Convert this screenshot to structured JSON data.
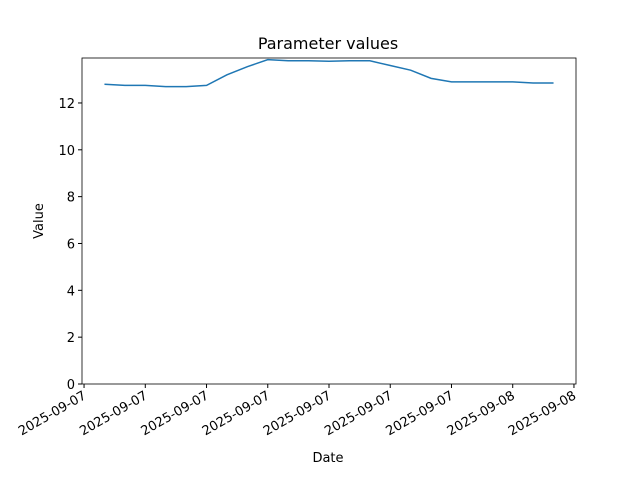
{
  "chart_data": {
    "type": "line",
    "title": "Parameter values",
    "x_label": "Date",
    "y_label": "Value",
    "x": [
      1,
      2,
      3,
      4,
      5,
      6,
      7,
      8,
      9,
      10,
      11,
      12,
      13,
      14,
      15,
      16,
      17,
      18,
      19,
      20,
      21,
      22,
      23
    ],
    "series": [
      {
        "name": "Value",
        "color": "#1f77b4",
        "values": [
          12.8,
          12.75,
          12.75,
          12.7,
          12.7,
          12.75,
          13.2,
          13.55,
          13.85,
          13.8,
          13.8,
          13.78,
          13.8,
          13.8,
          13.6,
          13.4,
          13.05,
          12.9,
          12.9,
          12.9,
          12.9,
          12.85,
          12.85
        ]
      }
    ],
    "xlim": [
      -0.1,
      24.1
    ],
    "xticks": [
      {
        "value": 0,
        "label": "2025-09-07"
      },
      {
        "value": 3,
        "label": "2025-09-07"
      },
      {
        "value": 6,
        "label": "2025-09-07"
      },
      {
        "value": 9,
        "label": "2025-09-07"
      },
      {
        "value": 12,
        "label": "2025-09-07"
      },
      {
        "value": 15,
        "label": "2025-09-07"
      },
      {
        "value": 18,
        "label": "2025-09-07"
      },
      {
        "value": 21,
        "label": "2025-09-08"
      },
      {
        "value": 24,
        "label": "2025-09-08"
      }
    ],
    "ylim": [
      0,
      13.92
    ],
    "yticks": [
      0,
      2,
      4,
      6,
      8,
      10,
      12
    ]
  }
}
